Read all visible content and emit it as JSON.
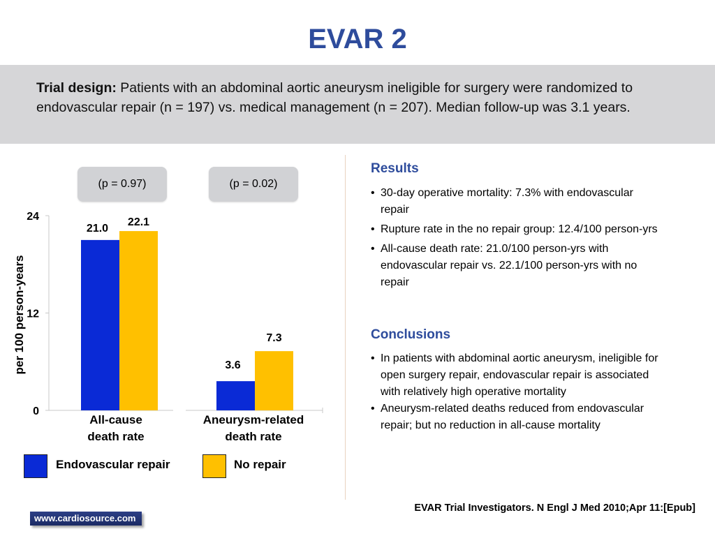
{
  "slide": {
    "title": "EVAR 2"
  },
  "design": {
    "label": "Trial design:",
    "text": " Patients with an abdominal aortic aneurysm ineligible for surgery were randomized to endovascular repair (n = 197) vs. medical management (n = 207). Median follow-up was 3.1 years."
  },
  "pills": {
    "p1": "(p = 0.97)",
    "p2": "(p = 0.02)"
  },
  "chart_data": {
    "type": "bar",
    "categories": [
      "All-cause\ndeath rate",
      "Aneurysm-related\ndeath rate"
    ],
    "series": [
      {
        "name": "Endovascular repair",
        "color": "#0a2ad6",
        "values": [
          21.0,
          3.6
        ]
      },
      {
        "name": "No repair",
        "color": "#ffc000",
        "values": [
          22.1,
          7.3
        ]
      }
    ],
    "data_labels": [
      [
        "21.0",
        "3.6"
      ],
      [
        "22.1",
        "7.3"
      ]
    ],
    "ylabel": "per 100 person-years",
    "yticks": [
      "0",
      "12",
      "24"
    ],
    "ylim": [
      0,
      24
    ],
    "legend": "bottom"
  },
  "legend": {
    "item1": "Endovascular repair",
    "item2": "No repair",
    "color1": "#0a2ad6",
    "color2": "#ffc000"
  },
  "results": {
    "heading": "Results",
    "items": [
      "30-day operative mortality: 7.3% with endovascular repair",
      "Rupture rate in the no repair group: 12.4/100 person-yrs",
      "All-cause death rate: 21.0/100 person-yrs with endovascular repair vs. 22.1/100 person-yrs with no repair"
    ]
  },
  "conclusions": {
    "heading": "Conclusions",
    "items": [
      "In patients with abdominal aortic aneurysm, ineligible for open surgery repair, endovascular repair is associated with relatively high operative mortality",
      "Aneurysm-related deaths reduced from endovascular repair; but no reduction in all-cause mortality"
    ]
  },
  "citation": "EVAR Trial Investigators. N Engl J Med 2010;Apr 11:[Epub]",
  "site": "www.cardiosource.com"
}
